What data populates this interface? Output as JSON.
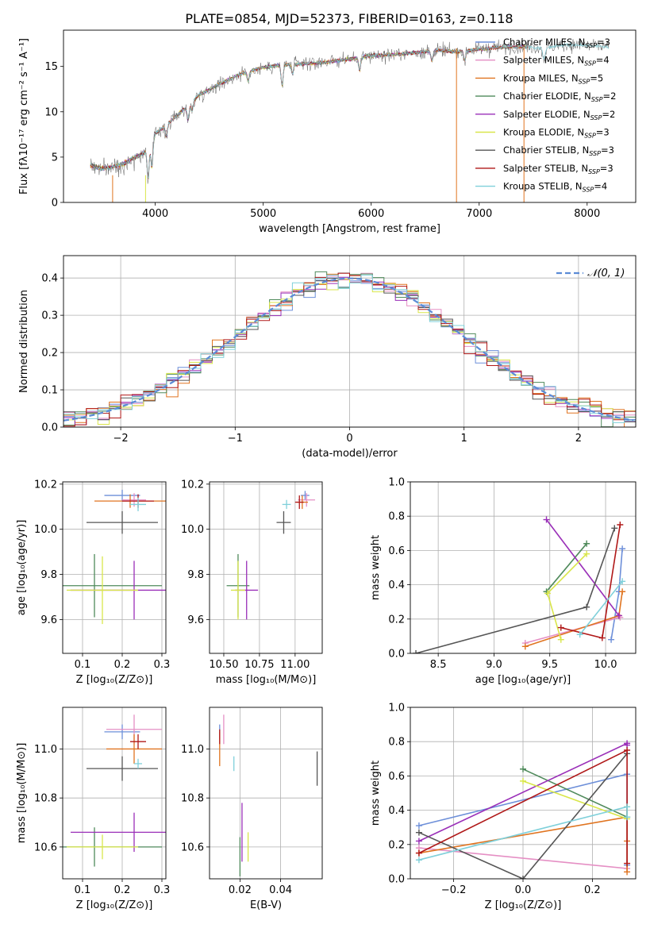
{
  "figure": {
    "title": "PLATE=0854, MJD=52373, FIBERID=0163, z=0.118"
  },
  "chart_data": [
    {
      "id": "spectrum",
      "type": "line",
      "xlabel": "wavelength [Angstrom, rest frame]",
      "ylabel": "Flux [fλ10⁻¹⁷ erg cm⁻² s⁻¹ A⁻¹]",
      "xlim": [
        3150,
        8450
      ],
      "ylim": [
        0,
        19
      ],
      "xticks": [
        4000,
        5000,
        6000,
        7000,
        8000
      ],
      "yticks": [
        0,
        5,
        10,
        15
      ],
      "legend_position": "right",
      "spectrum_anchors": {
        "x": [
          3400,
          3500,
          3600,
          3700,
          3800,
          3900,
          4000,
          4100,
          4200,
          4300,
          4400,
          4600,
          4800,
          5000,
          5200,
          5400,
          5600,
          5800,
          6000,
          6200,
          6400,
          6600,
          6800,
          7000,
          7200,
          7400,
          7600,
          7800,
          8000,
          8200
        ],
        "y": [
          4.1,
          3.7,
          3.9,
          4.2,
          4.9,
          5.5,
          7.6,
          8.5,
          9.6,
          10.6,
          11.8,
          13.1,
          14.2,
          14.9,
          15.2,
          15.3,
          15.5,
          15.8,
          16.2,
          16.3,
          16.5,
          16.8,
          16.6,
          16.9,
          17.1,
          17.2,
          17.0,
          17.4,
          17.3,
          17.2
        ]
      },
      "series": [
        {
          "name": "Chabrier MILES, N_SSP=3",
          "label": "Chabrier MILES, N",
          "sub": "SSP",
          "tail": "=3",
          "color": "#6d8fd9"
        },
        {
          "name": "Salpeter MILES, N_SSP=4",
          "label": "Salpeter MILES, N",
          "sub": "SSP",
          "tail": "=4",
          "color": "#e58fc4"
        },
        {
          "name": "Kroupa MILES, N_SSP=5",
          "label": "Kroupa MILES, N",
          "sub": "SSP",
          "tail": "=5",
          "color": "#e07420"
        },
        {
          "name": "Chabrier ELODIE, N_SSP=2",
          "label": "Chabrier ELODIE, N",
          "sub": "SSP",
          "tail": "=2",
          "color": "#4f8a5b"
        },
        {
          "name": "Salpeter ELODIE, N_SSP=2",
          "label": "Salpeter ELODIE, N",
          "sub": "SSP",
          "tail": "=2",
          "color": "#9a2fb8"
        },
        {
          "name": "Kroupa ELODIE, N_SSP=3",
          "label": "Kroupa ELODIE, N",
          "sub": "SSP",
          "tail": "=3",
          "color": "#d9e64a"
        },
        {
          "name": "Chabrier STELIB, N_SSP=3",
          "label": "Chabrier STELIB, N",
          "sub": "SSP",
          "tail": "=3",
          "color": "#555555"
        },
        {
          "name": "Salpeter STELIB, N_SSP=3",
          "label": "Salpeter STELIB, N",
          "sub": "SSP",
          "tail": "=3",
          "color": "#b01818"
        },
        {
          "name": "Kroupa STELIB, N_SSP=4",
          "label": "Kroupa STELIB, N",
          "sub": "SSP",
          "tail": "=4",
          "color": "#7fd0da"
        }
      ]
    },
    {
      "id": "residuals",
      "type": "histogram",
      "xlabel": "(data-model)/error",
      "ylabel": "Normed distribution",
      "xlim": [
        -2.5,
        2.5
      ],
      "ylim": [
        0,
        0.46
      ],
      "xticks": [
        -2,
        -1,
        0,
        1,
        2
      ],
      "yticks": [
        0.0,
        0.1,
        0.2,
        0.3,
        0.4
      ],
      "grid": true,
      "legend": "𝒩(0, 1)",
      "reference_curve": "normal(0,1)",
      "bin_width": 0.1,
      "legend_position": "top-right"
    },
    {
      "id": "age-vs-Z",
      "type": "errorbar",
      "xlabel": "Z [log₁₀(Z/Z⊙)]",
      "ylabel": "age  [log₁₀(age/yr)]",
      "xlim": [
        0.05,
        0.31
      ],
      "ylim": [
        9.45,
        10.21
      ],
      "xticks": [
        0.1,
        0.2,
        0.3
      ],
      "yticks": [
        9.6,
        9.8,
        10.0,
        10.2
      ],
      "grid": true,
      "points": [
        {
          "series": "Chabrier MILES",
          "x": 0.2,
          "y": 10.15,
          "xerr": 0.045,
          "yerr": 0.025
        },
        {
          "series": "Salpeter MILES",
          "x": 0.23,
          "y": 10.13,
          "xerr": 0.03,
          "yerr": 0.03
        },
        {
          "series": "Kroupa MILES",
          "x": 0.22,
          "y": 10.125,
          "xerr": 0.09,
          "yerr": 0.03
        },
        {
          "series": "Chabrier ELODIE",
          "x": 0.13,
          "y": 9.75,
          "xerr": 0.17,
          "yerr": 0.14
        },
        {
          "series": "Salpeter ELODIE",
          "x": 0.23,
          "y": 9.73,
          "xerr": 0.16,
          "yerr": 0.13
        },
        {
          "series": "Kroupa ELODIE",
          "x": 0.15,
          "y": 9.73,
          "xerr": 0.09,
          "yerr": 0.15
        },
        {
          "series": "Chabrier STELIB",
          "x": 0.2,
          "y": 10.03,
          "xerr": 0.09,
          "yerr": 0.05
        },
        {
          "series": "Salpeter STELIB",
          "x": 0.24,
          "y": 10.125,
          "xerr": 0.04,
          "yerr": 0.03
        },
        {
          "series": "Kroupa STELIB",
          "x": 0.24,
          "y": 10.11,
          "xerr": 0.02,
          "yerr": 0.03
        }
      ]
    },
    {
      "id": "age-vs-mass",
      "type": "errorbar",
      "xlabel": "mass [log₁₀(M/M⊙)]",
      "ylabel": "",
      "xlim": [
        10.4,
        11.19
      ],
      "ylim": [
        9.45,
        10.21
      ],
      "xticks": [
        10.5,
        10.75,
        11.0
      ],
      "yticks": [
        9.6,
        9.8,
        10.0,
        10.2
      ],
      "grid": true,
      "points": [
        {
          "series": "Chabrier MILES",
          "x": 11.07,
          "y": 10.15,
          "xerr": 0.03,
          "yerr": 0.02
        },
        {
          "series": "Salpeter MILES",
          "x": 11.08,
          "y": 10.13,
          "xerr": 0.06,
          "yerr": 0.03
        },
        {
          "series": "Kroupa MILES",
          "x": 11.05,
          "y": 10.12,
          "xerr": 0.04,
          "yerr": 0.03
        },
        {
          "series": "Chabrier ELODIE",
          "x": 10.6,
          "y": 9.75,
          "xerr": 0.08,
          "yerr": 0.14
        },
        {
          "series": "Salpeter ELODIE",
          "x": 10.66,
          "y": 9.73,
          "xerr": 0.08,
          "yerr": 0.13
        },
        {
          "series": "Kroupa ELODIE",
          "x": 10.6,
          "y": 9.73,
          "xerr": 0.05,
          "yerr": 0.13
        },
        {
          "series": "Chabrier STELIB",
          "x": 10.92,
          "y": 10.03,
          "xerr": 0.05,
          "yerr": 0.05
        },
        {
          "series": "Salpeter STELIB",
          "x": 11.03,
          "y": 10.12,
          "xerr": 0.03,
          "yerr": 0.03
        },
        {
          "series": "Kroupa STELIB",
          "x": 10.94,
          "y": 10.11,
          "xerr": 0.03,
          "yerr": 0.02
        }
      ]
    },
    {
      "id": "weight-vs-age",
      "type": "line",
      "xlabel": "age  [log₁₀(age/yr)]",
      "ylabel": "mass weight",
      "xlim": [
        8.25,
        10.27
      ],
      "ylim": [
        0,
        1.0
      ],
      "xticks": [
        8.5,
        9.0,
        9.5,
        10.0
      ],
      "yticks": [
        0.0,
        0.2,
        0.4,
        0.6,
        0.8,
        1.0
      ],
      "grid": true,
      "series": [
        {
          "name": "Chabrier MILES",
          "x": [
            10.15,
            10.12,
            10.05
          ],
          "y": [
            0.61,
            0.36,
            0.08
          ]
        },
        {
          "name": "Salpeter MILES",
          "x": [
            10.13,
            9.28
          ],
          "y": [
            0.21,
            0.06
          ]
        },
        {
          "name": "Kroupa MILES",
          "x": [
            10.15,
            10.12,
            9.28
          ],
          "y": [
            0.36,
            0.22,
            0.04
          ]
        },
        {
          "name": "Chabrier ELODIE",
          "x": [
            9.83,
            9.47
          ],
          "y": [
            0.64,
            0.36
          ]
        },
        {
          "name": "Salpeter ELODIE",
          "x": [
            9.47,
            10.12
          ],
          "y": [
            0.78,
            0.22
          ]
        },
        {
          "name": "Kroupa ELODIE",
          "x": [
            9.83,
            9.48,
            9.6
          ],
          "y": [
            0.58,
            0.35,
            0.08
          ]
        },
        {
          "name": "Chabrier STELIB",
          "x": [
            10.08,
            9.83,
            8.3
          ],
          "y": [
            0.73,
            0.27,
            0.0
          ]
        },
        {
          "name": "Salpeter STELIB",
          "x": [
            10.13,
            9.97,
            9.6
          ],
          "y": [
            0.75,
            0.09,
            0.15
          ]
        },
        {
          "name": "Kroupa STELIB",
          "x": [
            10.15,
            9.77
          ],
          "y": [
            0.42,
            0.11
          ]
        }
      ]
    },
    {
      "id": "mass-vs-Z",
      "type": "errorbar",
      "xlabel": "Z [log₁₀(Z/Z⊙)]",
      "ylabel": "mass [log₁₀(M/M⊙)]",
      "xlim": [
        0.05,
        0.31
      ],
      "ylim": [
        10.47,
        11.17
      ],
      "xticks": [
        0.1,
        0.2,
        0.3
      ],
      "yticks": [
        10.6,
        10.8,
        11.0
      ],
      "grid": true,
      "points": [
        {
          "series": "Chabrier MILES",
          "x": 0.2,
          "y": 11.07,
          "xerr": 0.045,
          "yerr": 0.03
        },
        {
          "series": "Salpeter MILES",
          "x": 0.23,
          "y": 11.08,
          "xerr": 0.07,
          "yerr": 0.06
        },
        {
          "series": "Kroupa MILES",
          "x": 0.23,
          "y": 11.0,
          "xerr": 0.07,
          "yerr": 0.06
        },
        {
          "series": "Chabrier ELODIE",
          "x": 0.13,
          "y": 10.6,
          "xerr": 0.17,
          "yerr": 0.08
        },
        {
          "series": "Salpeter ELODIE",
          "x": 0.23,
          "y": 10.66,
          "xerr": 0.16,
          "yerr": 0.08
        },
        {
          "series": "Kroupa ELODIE",
          "x": 0.15,
          "y": 10.6,
          "xerr": 0.09,
          "yerr": 0.05
        },
        {
          "series": "Chabrier STELIB",
          "x": 0.2,
          "y": 10.92,
          "xerr": 0.09,
          "yerr": 0.05
        },
        {
          "series": "Salpeter STELIB",
          "x": 0.24,
          "y": 11.03,
          "xerr": 0.02,
          "yerr": 0.03
        },
        {
          "series": "Kroupa STELIB",
          "x": 0.24,
          "y": 10.94,
          "xerr": 0.01,
          "yerr": 0.02
        }
      ]
    },
    {
      "id": "mass-vs-EBV",
      "type": "errorbar",
      "xlabel": "E(B-V)",
      "ylabel": "",
      "xlim": [
        0.005,
        0.0605
      ],
      "ylim": [
        10.47,
        11.17
      ],
      "xticks": [
        0.02,
        0.04
      ],
      "xticklabels": [
        "0.02",
        "0.04"
      ],
      "yticks": [
        10.6,
        10.8,
        11.0
      ],
      "grid": true,
      "points": [
        {
          "series": "Chabrier MILES",
          "x": 0.01,
          "y": 11.07,
          "xerr": 0,
          "yerr": 0.03
        },
        {
          "series": "Salpeter MILES",
          "x": 0.012,
          "y": 11.08,
          "xerr": 0,
          "yerr": 0.06
        },
        {
          "series": "Kroupa MILES",
          "x": 0.01,
          "y": 11.0,
          "xerr": 0,
          "yerr": 0.07
        },
        {
          "series": "Chabrier ELODIE",
          "x": 0.02,
          "y": 10.56,
          "xerr": 0,
          "yerr": 0.08
        },
        {
          "series": "Salpeter ELODIE",
          "x": 0.021,
          "y": 10.66,
          "xerr": 0,
          "yerr": 0.12
        },
        {
          "series": "Kroupa ELODIE",
          "x": 0.024,
          "y": 10.6,
          "xerr": 0,
          "yerr": 0.06
        },
        {
          "series": "Chabrier STELIB",
          "x": 0.058,
          "y": 10.92,
          "xerr": 0,
          "yerr": 0.07
        },
        {
          "series": "Salpeter STELIB",
          "x": 0.01,
          "y": 11.05,
          "xerr": 0,
          "yerr": 0.03
        },
        {
          "series": "Kroupa STELIB",
          "x": 0.017,
          "y": 10.94,
          "xerr": 0,
          "yerr": 0.03
        }
      ]
    },
    {
      "id": "weight-vs-Z",
      "type": "line",
      "xlabel": "Z [log₁₀(Z/Z⊙)]",
      "ylabel": "mass weight",
      "xlim": [
        -0.325,
        0.325
      ],
      "ylim": [
        0,
        1.0
      ],
      "xticks": [
        -0.2,
        0.0,
        0.2
      ],
      "xticklabels": [
        "−0.2",
        "0.0",
        "0.2"
      ],
      "yticks": [
        0.0,
        0.2,
        0.4,
        0.6,
        0.8,
        1.0
      ],
      "grid": true,
      "series": [
        {
          "name": "Chabrier MILES",
          "x": [
            -0.3,
            0.3,
            0.3
          ],
          "y": [
            0.31,
            0.61,
            0.08
          ]
        },
        {
          "name": "Salpeter MILES",
          "x": [
            -0.3,
            0.3
          ],
          "y": [
            0.18,
            0.06
          ]
        },
        {
          "name": "Kroupa MILES",
          "x": [
            -0.3,
            0.3,
            0.3,
            0.3
          ],
          "y": [
            0.15,
            0.36,
            0.22,
            0.04
          ]
        },
        {
          "name": "Chabrier ELODIE",
          "x": [
            0.0,
            0.3
          ],
          "y": [
            0.64,
            0.36
          ]
        },
        {
          "name": "Salpeter ELODIE",
          "x": [
            -0.3,
            0.3,
            0.3
          ],
          "y": [
            0.22,
            0.79,
            0.78
          ]
        },
        {
          "name": "Kroupa ELODIE",
          "x": [
            0.0,
            0.3,
            0.3
          ],
          "y": [
            0.57,
            0.35,
            0.42
          ]
        },
        {
          "name": "Chabrier STELIB",
          "x": [
            -0.3,
            0.0,
            0.3
          ],
          "y": [
            0.27,
            0.0,
            0.73
          ]
        },
        {
          "name": "Salpeter STELIB",
          "x": [
            -0.3,
            0.3,
            0.3
          ],
          "y": [
            0.15,
            0.75,
            0.09
          ]
        },
        {
          "name": "Kroupa STELIB",
          "x": [
            -0.3,
            0.3,
            0.3
          ],
          "y": [
            0.11,
            0.42,
            0.36
          ]
        }
      ]
    }
  ]
}
